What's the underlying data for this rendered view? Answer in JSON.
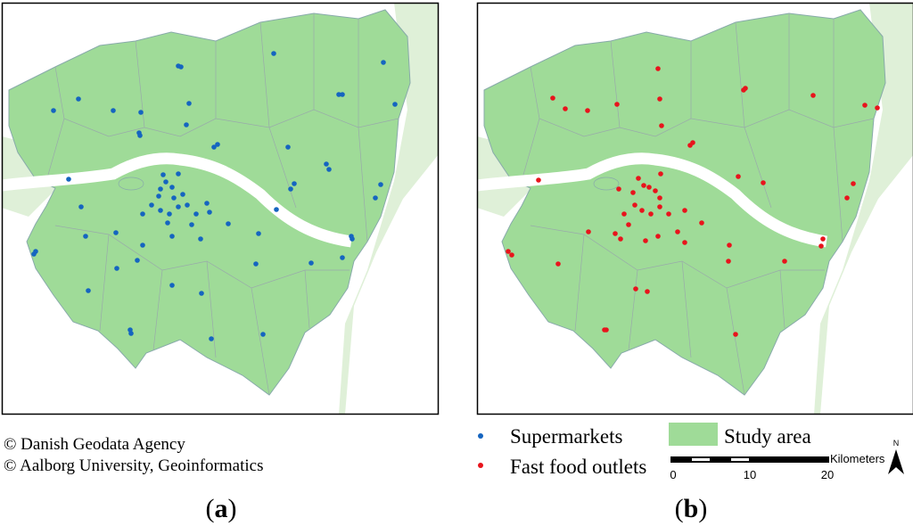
{
  "panels": [
    {
      "label": [
        "(",
        "a",
        ")"
      ]
    },
    {
      "label": [
        "(",
        "b",
        ")"
      ]
    }
  ],
  "credits": [
    "© Danish Geodata Agency",
    "© Aalborg University, Geoinformatics"
  ],
  "legend": {
    "points": [
      "Supermarkets",
      "Fast food outlets"
    ],
    "area": "Study area"
  },
  "scale_bar": {
    "unit": "Kilometers",
    "ticks": [
      "0",
      "10",
      "20"
    ]
  },
  "north_arrow": "N"
}
